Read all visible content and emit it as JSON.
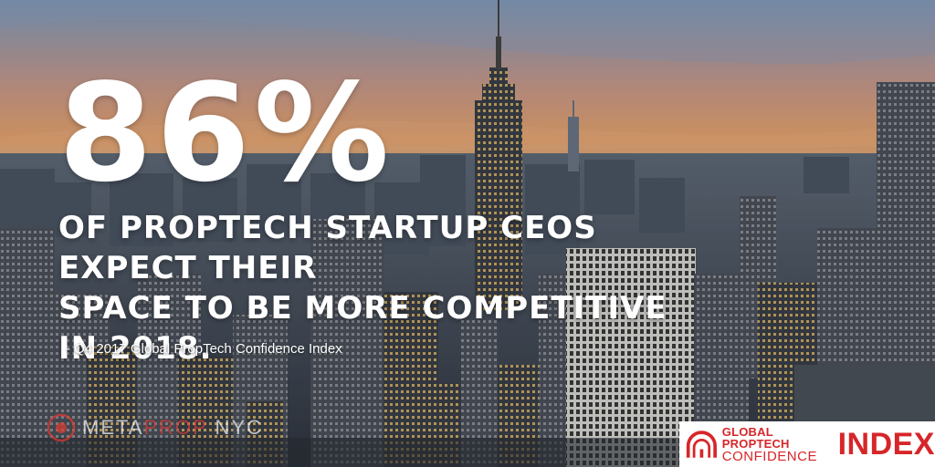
{
  "graphic": {
    "big_stat": "86%",
    "headline_line1": "OF PROPTECH STARTUP CEOS EXPECT THEIR",
    "headline_line2": "SPACE TO BE MORE COMPETITIVE IN 2018.",
    "source": "- Q4 2017 Global PropTech Confidence Index"
  },
  "watermark": {
    "part1": "META",
    "part2": "PROP",
    "part3": " NYC"
  },
  "index_logo": {
    "line1": "GLOBAL PROPTECH",
    "line2": "CONFIDENCE",
    "big": "INDEX"
  },
  "colors": {
    "brand_red": "#d7262a",
    "sky_top": "#6d8fb4",
    "sky_sunset": "#e3a06a"
  }
}
